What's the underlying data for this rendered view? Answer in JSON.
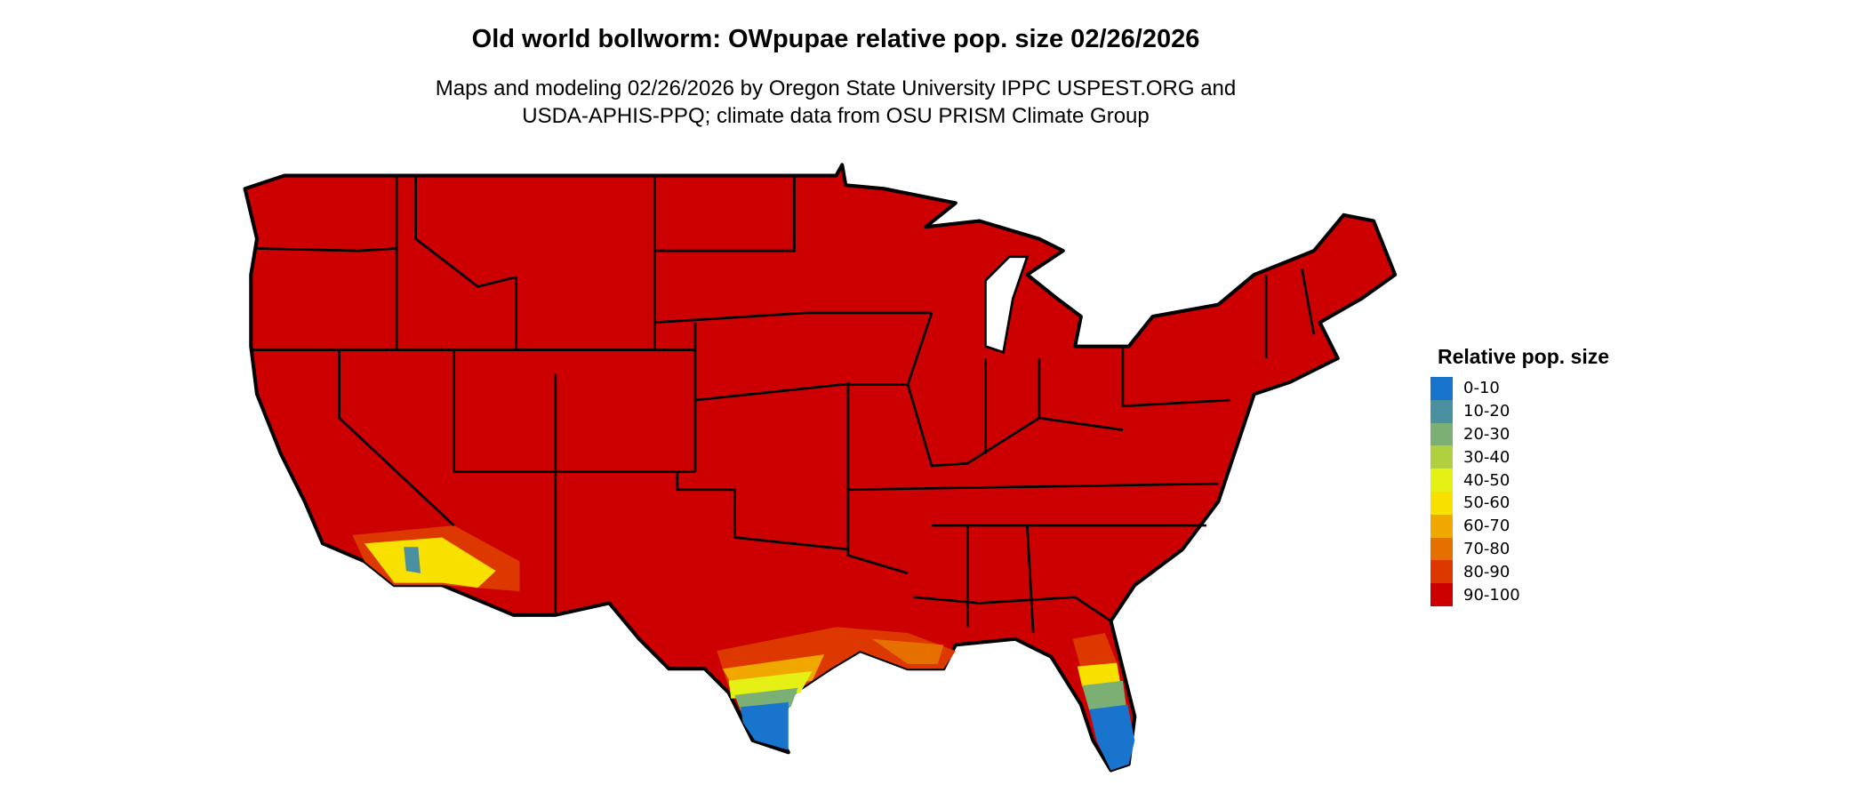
{
  "title": "Old world bollworm: OWpupae relative pop. size 02/26/2026",
  "subtitle_line1": "Maps and modeling 02/26/2026 by Oregon State University IPPC USPEST.ORG and",
  "subtitle_line2": "USDA-APHIS-PPQ; climate data from OSU PRISM Climate Group",
  "legend": {
    "title": "Relative pop. size",
    "items": [
      {
        "label": "0-10",
        "color": "#1874cd"
      },
      {
        "label": "10-20",
        "color": "#4a90a0"
      },
      {
        "label": "20-30",
        "color": "#7caf74"
      },
      {
        "label": "30-40",
        "color": "#b0d040"
      },
      {
        "label": "40-50",
        "color": "#e5f014"
      },
      {
        "label": "50-60",
        "color": "#f8e000"
      },
      {
        "label": "60-70",
        "color": "#f0a800"
      },
      {
        "label": "70-80",
        "color": "#e57000"
      },
      {
        "label": "80-90",
        "color": "#dc3800"
      },
      {
        "label": "90-100",
        "color": "#cc0000"
      }
    ]
  },
  "map": {
    "region": "Contiguous United States",
    "dominant_class": "90-100",
    "border_color": "#000000"
  }
}
